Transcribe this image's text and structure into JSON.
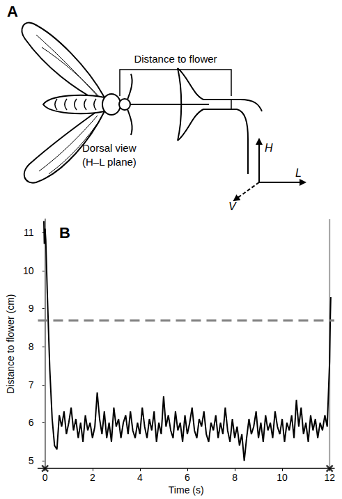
{
  "diagram": {
    "panel_label": "A",
    "bracket_label": "Distance to flower",
    "view_label": [
      "Dorsal view",
      "(H–L plane)"
    ],
    "axis_labels": {
      "up": "H",
      "right": "L",
      "depth": "V"
    }
  },
  "chart_data": {
    "type": "line",
    "panel_label": "B",
    "x_label": "Time (s)",
    "y_label": "Distance to flower (cm)",
    "color": "#000000",
    "x": [
      -0.05,
      -0.03,
      0,
      0.03,
      0.1,
      0.2,
      0.3,
      0.4,
      0.5,
      0.6,
      0.7,
      0.8,
      0.9,
      1.0,
      1.1,
      1.2,
      1.3,
      1.4,
      1.5,
      1.6,
      1.7,
      1.8,
      1.9,
      2.0,
      2.1,
      2.2,
      2.3,
      2.4,
      2.5,
      2.6,
      2.7,
      2.8,
      2.9,
      3.0,
      3.1,
      3.2,
      3.3,
      3.4,
      3.5,
      3.6,
      3.7,
      3.8,
      3.9,
      4.0,
      4.1,
      4.2,
      4.3,
      4.4,
      4.5,
      4.6,
      4.7,
      4.8,
      4.9,
      5.0,
      5.1,
      5.2,
      5.3,
      5.4,
      5.5,
      5.6,
      5.7,
      5.8,
      5.9,
      6.0,
      6.1,
      6.2,
      6.3,
      6.4,
      6.5,
      6.6,
      6.7,
      6.8,
      6.9,
      7.0,
      7.1,
      7.2,
      7.3,
      7.4,
      7.5,
      7.6,
      7.7,
      7.8,
      7.9,
      8.0,
      8.1,
      8.2,
      8.3,
      8.4,
      8.5,
      8.6,
      8.7,
      8.8,
      8.9,
      9.0,
      9.1,
      9.2,
      9.3,
      9.4,
      9.5,
      9.6,
      9.7,
      9.8,
      9.9,
      10.0,
      10.1,
      10.2,
      10.3,
      10.4,
      10.5,
      10.6,
      10.7,
      10.8,
      10.9,
      11.0,
      11.1,
      11.2,
      11.3,
      11.4,
      11.5,
      11.6,
      11.7,
      11.8,
      11.9,
      12.0,
      12.03,
      12.05
    ],
    "values": [
      11.3,
      10.7,
      11.1,
      10.8,
      9.3,
      7.4,
      6.1,
      5.4,
      5.3,
      6.2,
      5.9,
      6.3,
      5.7,
      6.0,
      6.4,
      5.8,
      6.1,
      5.6,
      6.0,
      5.5,
      6.2,
      5.8,
      6.0,
      5.6,
      5.9,
      6.8,
      6.1,
      5.7,
      6.3,
      5.6,
      6.0,
      5.5,
      6.4,
      5.9,
      6.1,
      5.6,
      6.0,
      6.2,
      5.7,
      6.3,
      5.8,
      5.6,
      6.0,
      5.7,
      6.4,
      5.9,
      5.6,
      6.1,
      5.8,
      6.3,
      5.5,
      6.0,
      5.7,
      6.7,
      5.9,
      6.2,
      5.8,
      5.6,
      6.3,
      5.8,
      6.0,
      5.5,
      6.2,
      5.7,
      6.0,
      6.4,
      5.8,
      5.6,
      6.1,
      5.9,
      6.3,
      5.7,
      5.5,
      6.0,
      5.8,
      6.2,
      5.6,
      6.0,
      5.7,
      6.4,
      5.8,
      5.5,
      6.1,
      5.6,
      5.9,
      5.4,
      5.7,
      5.0,
      5.6,
      6.1,
      5.7,
      5.9,
      6.3,
      5.6,
      6.0,
      5.5,
      6.2,
      5.8,
      6.0,
      5.6,
      6.3,
      5.9,
      5.7,
      6.1,
      5.5,
      6.0,
      5.8,
      6.2,
      5.6,
      6.6,
      5.9,
      6.4,
      5.7,
      6.0,
      5.5,
      6.2,
      5.8,
      6.1,
      5.6,
      6.0,
      5.8,
      6.2,
      5.9,
      7.6,
      8.8,
      9.3
    ],
    "xlim": [
      -0.3,
      12.2
    ],
    "xticks": [
      0,
      2,
      4,
      6,
      8,
      10,
      12
    ],
    "ylim": [
      4.8,
      11.35
    ],
    "yticks": [
      5,
      6,
      7,
      8,
      9,
      10,
      11
    ],
    "grid": false,
    "threshold": 8.7,
    "threshold_color": "#808080",
    "event_times": [
      0,
      12
    ],
    "event_color": "#a0a0a0"
  }
}
